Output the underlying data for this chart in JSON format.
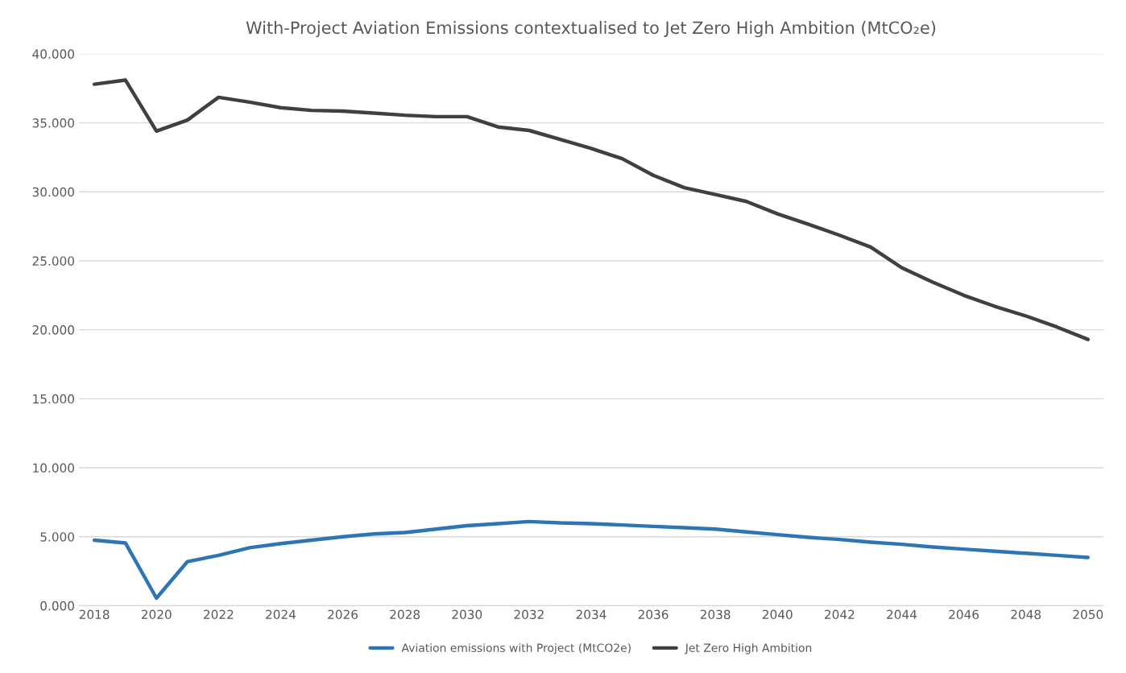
{
  "chart_data": {
    "type": "line",
    "title": "With-Project Aviation Emissions contextualised to Jet Zero High Ambition (MtCO₂e)",
    "categories": [
      "2018",
      null,
      "2020",
      null,
      "2022",
      null,
      "2024",
      null,
      "2026",
      null,
      "2028",
      null,
      "2030",
      null,
      "2032",
      null,
      "2034",
      null,
      "2036",
      null,
      "2038",
      null,
      "2040",
      null,
      "2042",
      null,
      "2044",
      null,
      "2046",
      null,
      "2048",
      null,
      "2050"
    ],
    "series": [
      {
        "name": "Aviation emissions with Project (MtCO2e)",
        "color": "#2e75b6",
        "values": [
          4.75,
          4.55,
          0.55,
          3.2,
          3.65,
          4.2,
          4.5,
          4.75,
          5.0,
          5.2,
          5.3,
          5.55,
          5.8,
          5.95,
          6.1,
          6.0,
          5.95,
          5.85,
          5.75,
          5.65,
          5.55,
          5.35,
          5.15,
          4.95,
          4.8,
          4.6,
          4.45,
          4.25,
          4.1,
          3.95,
          3.8,
          3.65,
          3.5
        ]
      },
      {
        "name": "Jet Zero High Ambition",
        "color": "#404040",
        "values": [
          37.8,
          38.1,
          34.4,
          35.2,
          36.85,
          36.5,
          36.1,
          35.9,
          35.85,
          35.7,
          35.55,
          35.45,
          35.45,
          34.7,
          34.45,
          33.8,
          33.15,
          32.4,
          31.2,
          30.3,
          29.8,
          29.3,
          28.4,
          27.65,
          26.85,
          26.0,
          24.5,
          23.45,
          22.5,
          21.7,
          21.0,
          20.2,
          19.3
        ]
      }
    ],
    "ylim": [
      0,
      40
    ],
    "yticks": [
      {
        "value": 0,
        "label": "0.000"
      },
      {
        "value": 5,
        "label": "5.000"
      },
      {
        "value": 10,
        "label": "10.000"
      },
      {
        "value": 15,
        "label": "15.000"
      },
      {
        "value": 20,
        "label": "20.000"
      },
      {
        "value": 25,
        "label": "25.000"
      },
      {
        "value": 30,
        "label": "30.000"
      },
      {
        "value": 35,
        "label": "35.000"
      },
      {
        "value": 40,
        "label": "40.000"
      }
    ],
    "grid": "y",
    "legend": "bottom",
    "marker": "none",
    "line_style": "solid"
  }
}
